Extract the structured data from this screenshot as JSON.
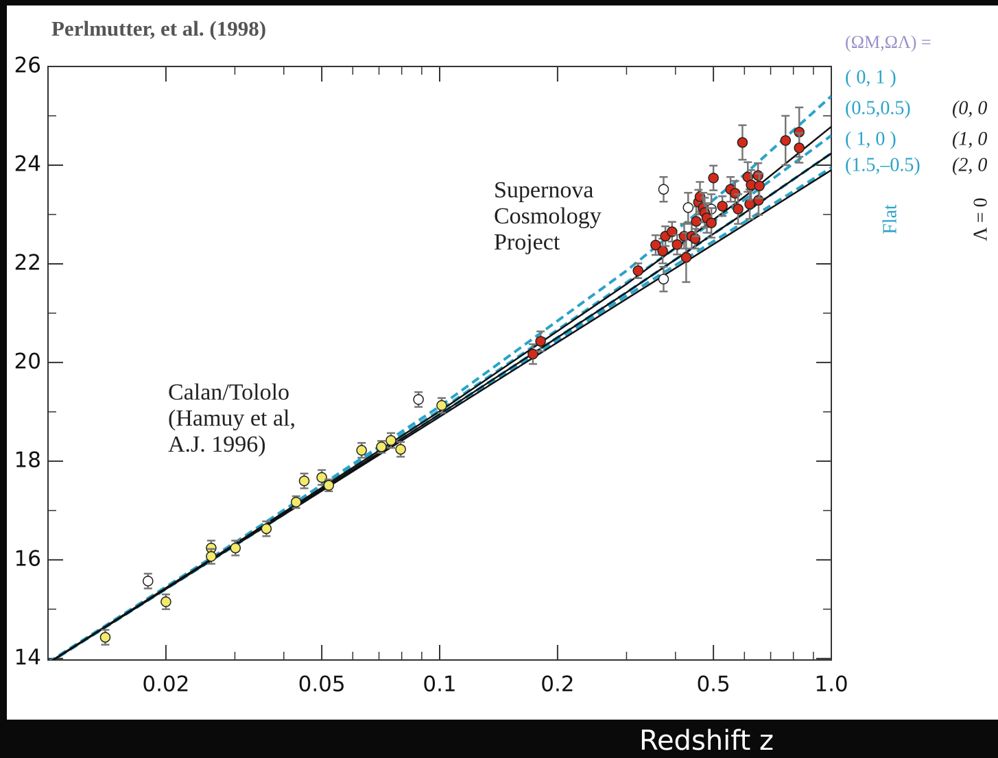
{
  "chart_data": {
    "type": "scatter",
    "title": "Perlmutter, et al. (1998)",
    "xlabel": "Redshift z",
    "xscale": "log",
    "xlim": [
      0.01,
      1.0
    ],
    "ylim": [
      13.97,
      26
    ],
    "xticks": [
      0.02,
      0.05,
      0.1,
      0.2,
      0.5,
      {
        "value": 1.0,
        "label": "1.0"
      }
    ],
    "xticks_minor": [
      0.03,
      0.04,
      0.06,
      0.07,
      0.08,
      0.09,
      0.3,
      0.4,
      0.6,
      0.7,
      0.8,
      0.9
    ],
    "yticks": [
      14,
      16,
      18,
      20,
      22,
      24,
      26
    ],
    "yticks_minor": [
      15,
      17,
      19,
      21,
      23,
      25
    ],
    "grid": false,
    "annotations": [
      [
        "Supernova",
        "Cosmology",
        "Project"
      ],
      [
        "Calan/Tololo",
        "(Hamuy et al,",
        "A.J. 1996)"
      ]
    ],
    "legend_title": "(ΩM,ΩΛ) =",
    "legend_groups": [
      "Flat",
      "Λ = 0"
    ],
    "series": [
      {
        "color": "#f3ea6a",
        "x": [
          0.014,
          0.02,
          0.0261,
          0.0261,
          0.0301,
          0.0361,
          0.043,
          0.0451,
          0.05,
          0.0521,
          0.0632,
          0.071,
          0.0751,
          0.0795,
          0.1012
        ],
        "values": [
          14.43,
          15.15,
          16.24,
          16.07,
          16.24,
          16.63,
          17.17,
          17.6,
          17.67,
          17.51,
          18.22,
          18.29,
          18.42,
          18.24,
          19.13
        ],
        "yerr": [
          0.15,
          0.15,
          0.15,
          0.15,
          0.15,
          0.15,
          0.12,
          0.15,
          0.15,
          0.12,
          0.15,
          0.12,
          0.15,
          0.15,
          0.15
        ]
      },
      {
        "color": "#ffffff",
        "x": [
          0.018,
          0.0883,
          0.373,
          0.373,
          0.431,
          0.494
        ],
        "values": [
          15.57,
          19.25,
          23.51,
          21.69,
          23.14,
          23.11
        ],
        "yerr": [
          0.15,
          0.15,
          0.25,
          0.25,
          0.3,
          0.3
        ]
      },
      {
        "color": "#d42a1a",
        "x": [
          0.173,
          0.181,
          0.321,
          0.356,
          0.371,
          0.377,
          0.392,
          0.404,
          0.421,
          0.426,
          0.44,
          0.449,
          0.452,
          0.458,
          0.462,
          0.471,
          0.475,
          0.481,
          0.494,
          0.5,
          0.527,
          0.553,
          0.568,
          0.578,
          0.593,
          0.612,
          0.619,
          0.624,
          0.65,
          0.652,
          0.655,
          0.764,
          0.828,
          0.828
        ],
        "values": [
          20.17,
          20.43,
          21.86,
          22.38,
          22.26,
          22.56,
          22.65,
          22.39,
          22.56,
          22.13,
          22.56,
          22.51,
          22.86,
          23.25,
          23.36,
          23.14,
          23.04,
          22.93,
          22.83,
          23.74,
          23.17,
          23.51,
          23.43,
          23.11,
          24.46,
          23.76,
          23.21,
          23.6,
          23.79,
          23.29,
          23.58,
          24.5,
          24.67,
          24.35
        ],
        "yerr": [
          0.2,
          0.2,
          0.15,
          0.2,
          0.25,
          0.2,
          0.2,
          0.2,
          0.25,
          0.5,
          0.25,
          0.2,
          0.3,
          0.25,
          0.3,
          0.3,
          0.3,
          0.3,
          0.3,
          0.25,
          0.2,
          0.25,
          0.25,
          0.3,
          0.35,
          0.3,
          0.3,
          0.3,
          0.25,
          0.3,
          0.25,
          0.5,
          0.5,
          0.3
        ]
      },
      {
        "name": "( 0,   1 )",
        "color": "#2aa3c9",
        "dash": true,
        "group": 0,
        "x": [
          0.01,
          0.03,
          0.1,
          0.3,
          0.6,
          1.0
        ],
        "values": [
          13.92,
          16.35,
          19.11,
          21.86,
          23.81,
          25.4
        ]
      },
      {
        "name": "(0.5,0.5)",
        "color": "#2aa3c9",
        "dash": true,
        "group": 0,
        "x": [
          0.01,
          0.03,
          0.1,
          0.3,
          0.6,
          1.0
        ],
        "values": [
          13.91,
          16.33,
          19.03,
          21.62,
          23.3,
          24.6
        ]
      },
      {
        "name": "( 1,   0 )",
        "color": "#2aa3c9",
        "dash": true,
        "group": 0,
        "x": [
          0.01,
          0.03,
          0.1,
          0.3,
          0.6,
          1.0
        ],
        "values": [
          13.9,
          16.3,
          18.95,
          21.42,
          23.03,
          24.24
        ]
      },
      {
        "name": "(1.5,–0.5)",
        "color": "#2aa3c9",
        "dash": true,
        "group": 0,
        "x": [
          0.01,
          0.03,
          0.1,
          0.3,
          0.6,
          1.0
        ],
        "values": [
          13.9,
          16.29,
          18.93,
          21.35,
          22.85,
          23.95
        ]
      },
      {
        "name": "(0, 0",
        "color": "#111111",
        "dash": false,
        "group": 1,
        "x": [
          0.01,
          0.03,
          0.1,
          0.3,
          0.6,
          1.0
        ],
        "values": [
          13.91,
          16.32,
          19.01,
          21.59,
          23.36,
          24.78
        ]
      },
      {
        "name": "(1, 0",
        "color": "#111111",
        "dash": false,
        "group": 1,
        "x": [
          0.01,
          0.03,
          0.1,
          0.3,
          0.6,
          1.0
        ],
        "values": [
          13.9,
          16.3,
          18.95,
          21.42,
          23.03,
          24.24
        ]
      },
      {
        "name": "(2, 0",
        "color": "#111111",
        "dash": false,
        "group": 1,
        "x": [
          0.01,
          0.03,
          0.1,
          0.3,
          0.6,
          1.0
        ],
        "values": [
          13.9,
          16.29,
          18.9,
          21.29,
          22.79,
          23.9
        ]
      }
    ]
  }
}
